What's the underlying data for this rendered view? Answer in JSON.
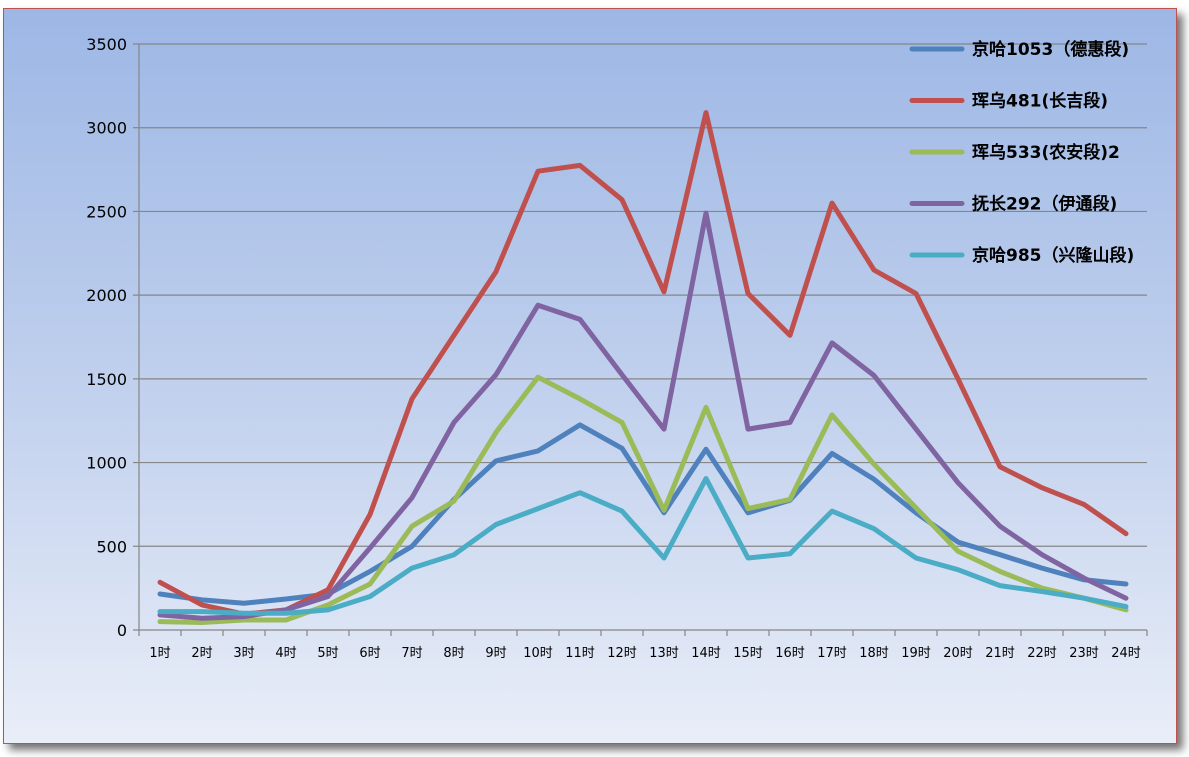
{
  "chart_data": {
    "type": "line",
    "title": "",
    "xlabel": "",
    "ylabel": "",
    "ylim": [
      0,
      3500
    ],
    "yticks": [
      0,
      500,
      1000,
      1500,
      2000,
      2500,
      3000,
      3500
    ],
    "grid": true,
    "legend_position": "top-right",
    "categories": [
      "1时",
      "2时",
      "3时",
      "4时",
      "5时",
      "6时",
      "7时",
      "8时",
      "9时",
      "10时",
      "11时",
      "12时",
      "13时",
      "14时",
      "15时",
      "16时",
      "17时",
      "18时",
      "19时",
      "20时",
      "21时",
      "22时",
      "23时",
      "24时"
    ],
    "series": [
      {
        "name": "京哈1053（德惠段)",
        "color": "#4f81bd",
        "values": [
          215,
          180,
          160,
          185,
          215,
          350,
          500,
          780,
          1010,
          1070,
          1225,
          1085,
          700,
          1080,
          700,
          775,
          1055,
          900,
          700,
          525,
          450,
          370,
          300,
          275
        ]
      },
      {
        "name": "珲乌481(长吉段)",
        "color": "#c0504d",
        "values": [
          285,
          150,
          95,
          120,
          240,
          690,
          1380,
          1760,
          2140,
          2740,
          2775,
          2570,
          2020,
          3090,
          2010,
          1760,
          2550,
          2150,
          2010,
          1500,
          975,
          850,
          750,
          575
        ]
      },
      {
        "name": "珲乌533(农安段)2",
        "color": "#9bbb59",
        "values": [
          50,
          45,
          60,
          60,
          150,
          275,
          620,
          770,
          1180,
          1510,
          1380,
          1240,
          715,
          1330,
          725,
          780,
          1285,
          990,
          730,
          470,
          350,
          250,
          190,
          120
        ]
      },
      {
        "name": "抚长292（伊通段)",
        "color": "#8064a2",
        "values": [
          90,
          70,
          80,
          120,
          200,
          490,
          790,
          1240,
          1525,
          1940,
          1855,
          1525,
          1200,
          2490,
          1200,
          1240,
          1715,
          1520,
          1200,
          880,
          620,
          450,
          310,
          190
        ]
      },
      {
        "name": "京哈985（兴隆山段)",
        "color": "#4bacc6",
        "values": [
          110,
          110,
          100,
          100,
          120,
          200,
          370,
          450,
          630,
          725,
          820,
          710,
          430,
          905,
          430,
          455,
          710,
          605,
          430,
          360,
          265,
          230,
          190,
          140
        ]
      }
    ]
  }
}
